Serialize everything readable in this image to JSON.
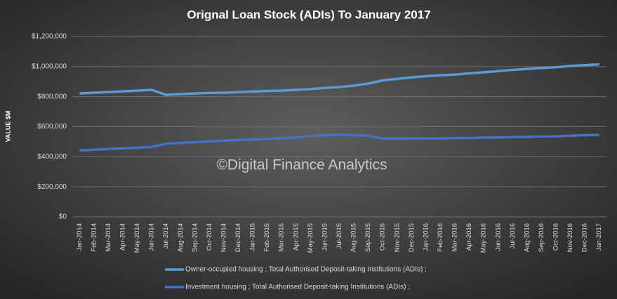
{
  "chart_data": {
    "type": "line",
    "title": "Orignal  Loan  Stock  (ADIs)  To  January  2017",
    "y_label": "VALUE $M",
    "annotation": "©Digital Finance Analytics",
    "categories": [
      "Jan-2014",
      "Feb-2014",
      "Mar-2014",
      "Apr-2014",
      "May-2014",
      "Jun-2014",
      "Jul-2014",
      "Aug-2014",
      "Sep-2014",
      "Oct-2014",
      "Nov-2014",
      "Dec-2014",
      "Jan-2015",
      "Feb-2015",
      "Mar-2015",
      "Apr-2015",
      "May-2015",
      "Jun-2015",
      "Jul-2015",
      "Aug-2015",
      "Sep-2015",
      "Oct-2015",
      "Nov-2015",
      "Dec-2015",
      "Jan-2016",
      "Feb-2016",
      "Mar-2016",
      "Apr-2016",
      "May-2016",
      "Jun-2016",
      "Jul-2016",
      "Aug-2016",
      "Sep-2016",
      "Oct-2016",
      "Nov-2016",
      "Dec-2016",
      "Jan-2017"
    ],
    "series": [
      {
        "name": "Owner-occupied housing ;  Total Authorised Deposit-taking Institutions (ADIs) ;",
        "color": "#5b9bd5",
        "values": [
          822000,
          826000,
          830000,
          835000,
          840000,
          845000,
          812000,
          817000,
          821000,
          825000,
          826000,
          830000,
          834000,
          838000,
          840000,
          845000,
          850000,
          858000,
          864000,
          873000,
          887000,
          908000,
          918000,
          928000,
          936000,
          942000,
          947000,
          955000,
          962000,
          970000,
          978000,
          984000,
          990000,
          996000,
          1004000,
          1010000,
          1015000
        ]
      },
      {
        "name": "Investment housing ;  Total Authorised Deposit-taking Institutions (ADIs) ;",
        "color": "#4472c4",
        "values": [
          442000,
          447000,
          452000,
          456000,
          460000,
          465000,
          487000,
          492000,
          497000,
          502000,
          507000,
          511000,
          515000,
          519000,
          524000,
          529000,
          538000,
          544000,
          547000,
          544000,
          540000,
          521000,
          521000,
          521000,
          521000,
          522000,
          524000,
          525000,
          527000,
          529000,
          531000,
          532000,
          534000,
          536000,
          540000,
          544000,
          545000
        ]
      }
    ],
    "ylim": [
      0,
      1200000
    ],
    "yticks": [
      {
        "value": 0,
        "label": "$0"
      },
      {
        "value": 200000,
        "label": "$200,000"
      },
      {
        "value": 400000,
        "label": "$400,000"
      },
      {
        "value": 600000,
        "label": "$600,000"
      },
      {
        "value": 800000,
        "label": "$800,000"
      },
      {
        "value": 1000000,
        "label": "$1,000,000"
      },
      {
        "value": 1200000,
        "label": "$1,200,000"
      }
    ],
    "grid": true
  }
}
